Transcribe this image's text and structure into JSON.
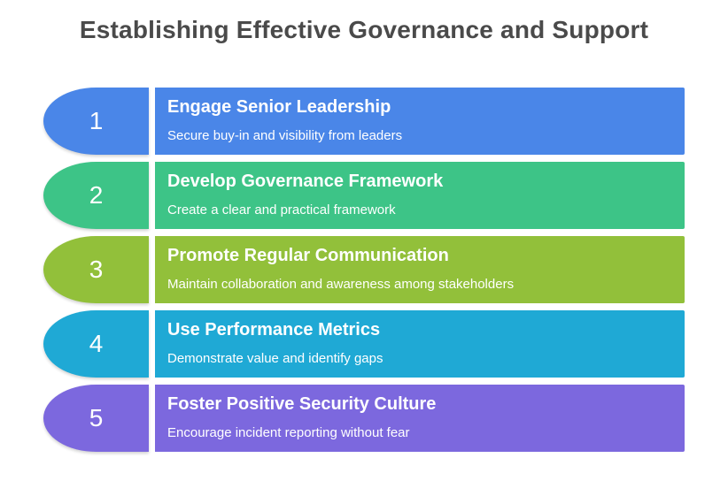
{
  "page": {
    "title": "Establishing Effective Governance and Support",
    "background_color": "#ffffff",
    "title_color": "#4a4a4a",
    "step_text_color": "#ffffff"
  },
  "steps": [
    {
      "number": "1",
      "title": "Engage Senior Leadership",
      "subtitle": "Secure buy-in and visibility from leaders",
      "color": "#4A86E8"
    },
    {
      "number": "2",
      "title": "Develop Governance Framework",
      "subtitle": "Create a clear and practical framework",
      "color": "#3DC487"
    },
    {
      "number": "3",
      "title": "Promote Regular Communication",
      "subtitle": "Maintain collaboration and awareness among stakeholders",
      "color": "#92C03A"
    },
    {
      "number": "4",
      "title": "Use Performance Metrics",
      "subtitle": "Demonstrate value and identify gaps",
      "color": "#1FA9D5"
    },
    {
      "number": "5",
      "title": "Foster Positive Security Culture",
      "subtitle": "Encourage incident reporting without fear",
      "color": "#7C68DE"
    }
  ]
}
